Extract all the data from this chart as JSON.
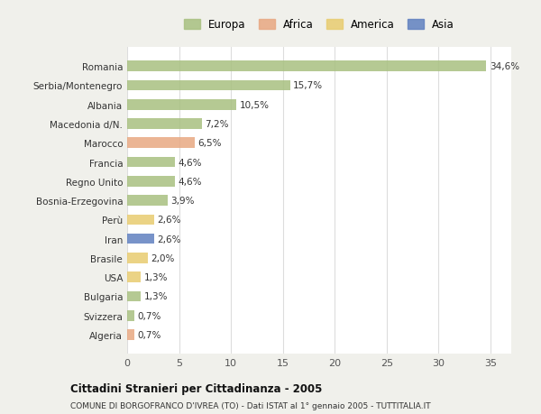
{
  "categories": [
    "Romania",
    "Serbia/Montenegro",
    "Albania",
    "Macedonia d/N.",
    "Marocco",
    "Francia",
    "Regno Unito",
    "Bosnia-Erzegovina",
    "Perù",
    "Iran",
    "Brasile",
    "USA",
    "Bulgaria",
    "Svizzera",
    "Algeria"
  ],
  "values": [
    34.6,
    15.7,
    10.5,
    7.2,
    6.5,
    4.6,
    4.6,
    3.9,
    2.6,
    2.6,
    2.0,
    1.3,
    1.3,
    0.7,
    0.7
  ],
  "labels": [
    "34,6%",
    "15,7%",
    "10,5%",
    "7,2%",
    "6,5%",
    "4,6%",
    "4,6%",
    "3,9%",
    "2,6%",
    "2,6%",
    "2,0%",
    "1,3%",
    "1,3%",
    "0,7%",
    "0,7%"
  ],
  "colors": [
    "#a8c080",
    "#a8c080",
    "#a8c080",
    "#a8c080",
    "#e8a882",
    "#a8c080",
    "#a8c080",
    "#a8c080",
    "#e8cc70",
    "#6080c0",
    "#e8cc70",
    "#e8cc70",
    "#a8c080",
    "#a8c080",
    "#e8a882"
  ],
  "legend_labels": [
    "Europa",
    "Africa",
    "America",
    "Asia"
  ],
  "legend_colors": [
    "#a8c080",
    "#e8a882",
    "#e8cc70",
    "#6080c0"
  ],
  "title": "Cittadini Stranieri per Cittadinanza - 2005",
  "subtitle": "COMUNE DI BORGOFRANCO D'IVREA (TO) - Dati ISTAT al 1° gennaio 2005 - TUTTITALIA.IT",
  "xlim": [
    0,
    37
  ],
  "xticks": [
    0,
    5,
    10,
    15,
    20,
    25,
    30,
    35
  ],
  "background_color": "#f0f0eb",
  "plot_bg_color": "#ffffff"
}
